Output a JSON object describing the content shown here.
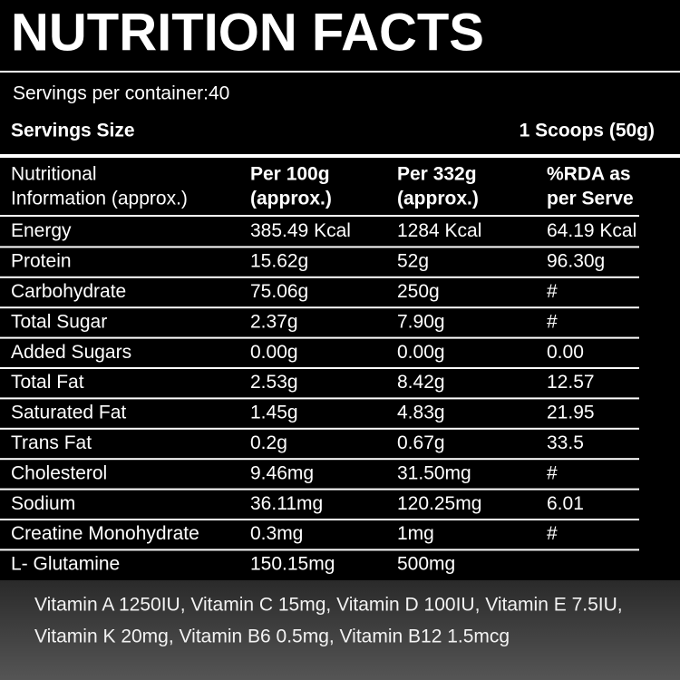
{
  "header": {
    "title": "NUTRITION FACTS",
    "servings_per_container": "Servings per container:40",
    "serving_size_label": "Servings Size",
    "serving_size_value": "1 Scoops (50g)"
  },
  "table": {
    "header": [
      [
        "Nutritional",
        "Information (approx.)"
      ],
      [
        "Per 100g",
        "(approx.)"
      ],
      [
        "Per 332g",
        "(approx.)"
      ],
      [
        "%RDA as",
        "per Serve"
      ]
    ],
    "rows": [
      [
        "Energy",
        "385.49  Kcal",
        "1284  Kcal",
        "64.19  Kcal"
      ],
      [
        "Protein",
        "15.62g",
        "52g",
        "96.30g"
      ],
      [
        " Carbohydrate",
        "75.06g",
        "250g",
        "#"
      ],
      [
        "Total Sugar",
        "2.37g",
        "7.90g",
        "#"
      ],
      [
        "Added Sugars",
        "0.00g",
        "0.00g",
        "0.00"
      ],
      [
        "Total Fat",
        "2.53g",
        "8.42g",
        "12.57"
      ],
      [
        " Saturated Fat",
        "1.45g",
        "4.83g",
        "21.95"
      ],
      [
        "Trans Fat",
        "0.2g",
        "0.67g",
        "33.5"
      ],
      [
        "Cholesterol",
        "9.46mg",
        "31.50mg",
        "#"
      ],
      [
        " Sodium",
        "36.11mg",
        "120.25mg",
        "6.01"
      ],
      [
        "Creatine Monohydrate",
        "0.3mg",
        "1mg",
        "#"
      ],
      [
        " L- Glutamine",
        "150.15mg",
        "500mg"
      ]
    ]
  },
  "vitamins": [
    "Vitamin A 1250IU, Vitamin C 15mg, Vitamin D 100IU, Vitamin E 7.5IU,",
    "Vitamin K 20mg,  Vitamin B6 0.5mg,  Vitamin B12 1.5mcg"
  ]
}
